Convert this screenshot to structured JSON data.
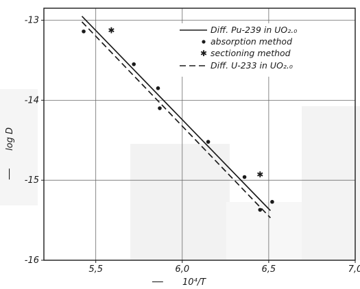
{
  "chart_data": {
    "type": "scatter",
    "title": "",
    "xlabel": "10⁴/T",
    "ylabel": "log D",
    "xlim": [
      5.2,
      7.0
    ],
    "ylim": [
      -16,
      -12.85
    ],
    "grid": true,
    "legend_position": "top-right",
    "x_ticks": [
      5.5,
      6.0,
      6.5,
      7.0
    ],
    "x_tick_labels": [
      "5,5",
      "6,0",
      "6,5",
      "7,0"
    ],
    "y_ticks": [
      -13,
      -14,
      -15,
      -16
    ],
    "y_tick_labels": [
      "-13",
      "-14",
      "-15",
      "-16"
    ],
    "series": [
      {
        "name": "Diff. Pu-239 in UO₂.₀",
        "kind": "line",
        "style": "solid",
        "x": [
          5.42,
          6.51
        ],
        "y": [
          -12.95,
          -15.38
        ]
      },
      {
        "name": "absorption method",
        "kind": "points",
        "marker": "dot",
        "x": [
          5.43,
          5.72,
          5.86,
          5.87,
          6.15,
          6.36,
          6.45,
          6.52
        ],
        "y": [
          -13.14,
          -13.55,
          -13.85,
          -14.1,
          -14.52,
          -14.96,
          -15.37,
          -15.27
        ]
      },
      {
        "name": "sectioning method",
        "kind": "points",
        "marker": "star",
        "x": [
          5.59,
          6.45
        ],
        "y": [
          -13.13,
          -14.93
        ]
      },
      {
        "name": "Diff. U-233 in UO₂.₀",
        "kind": "line",
        "style": "dashed",
        "x": [
          5.42,
          6.51
        ],
        "y": [
          -13.02,
          -15.47
        ]
      }
    ]
  },
  "legend": {
    "pu_line": "Diff. Pu-239 in UO₂.₀",
    "absorption": "absorption method",
    "sectioning": "sectioning method",
    "u_line": "Diff. U-233 in UO₂.₀"
  },
  "axes": {
    "xlabel_prefix": "──",
    "ylabel_prefix": "──"
  }
}
